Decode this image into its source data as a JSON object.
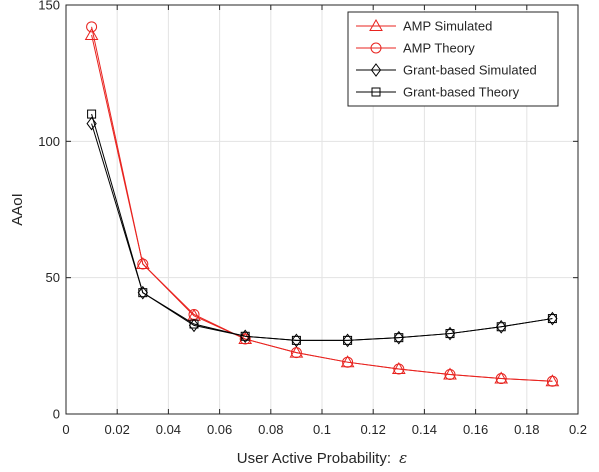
{
  "chart_data": {
    "type": "line",
    "title": "",
    "xlabel": "User Active Probability:",
    "xlabel_symbol": "ε",
    "ylabel": "AAoI",
    "xlim": [
      0,
      0.2
    ],
    "ylim": [
      0,
      150
    ],
    "xticks": [
      0,
      0.02,
      0.04,
      0.06,
      0.08,
      0.1,
      0.12,
      0.14,
      0.16,
      0.18,
      0.2
    ],
    "xtick_labels": [
      "0",
      "0.02",
      "0.04",
      "0.06",
      "0.08",
      "0.1",
      "0.12",
      "0.14",
      "0.16",
      "0.18",
      "0.2"
    ],
    "yticks": [
      0,
      50,
      100,
      150
    ],
    "ytick_labels": [
      "0",
      "50",
      "100",
      "150"
    ],
    "grid": true,
    "legend_position": "top-right",
    "x": [
      0.01,
      0.03,
      0.05,
      0.07,
      0.09,
      0.11,
      0.13,
      0.15,
      0.17,
      0.19
    ],
    "series": [
      {
        "name": "AMP Simulated",
        "color": "#e8231f",
        "marker": "triangle",
        "values": [
          139,
          55,
          36,
          27.5,
          22.5,
          19,
          16.5,
          14.5,
          13,
          12
        ]
      },
      {
        "name": "AMP Theory",
        "color": "#e8231f",
        "marker": "circle",
        "values": [
          142,
          55,
          36.5,
          27.5,
          22.5,
          19,
          16.5,
          14.5,
          13,
          12
        ]
      },
      {
        "name": "Grant-based Simulated",
        "color": "#000000",
        "marker": "diamond",
        "values": [
          106.5,
          44.5,
          32.5,
          28.5,
          27,
          27,
          28,
          29.5,
          32,
          35
        ]
      },
      {
        "name": "Grant-based Theory",
        "color": "#000000",
        "marker": "square",
        "values": [
          110,
          44.5,
          33,
          28.5,
          27,
          27,
          28,
          29.5,
          32,
          35
        ]
      }
    ]
  }
}
